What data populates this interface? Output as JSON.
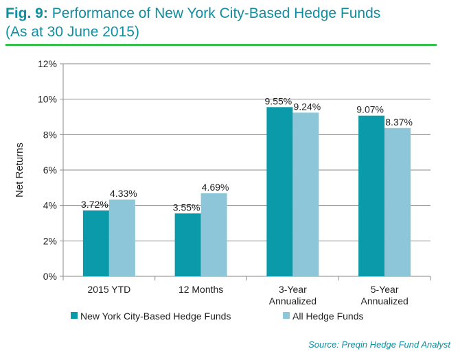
{
  "header": {
    "fig_label": "Fig. 9:",
    "title_line1": "Performance of New York City-Based Hedge Funds",
    "title_line2": "(As at 30 June 2015)"
  },
  "footer": {
    "source": "Source: Preqin Hedge Fund Analyst"
  },
  "colors": {
    "title": "#0e8ea0",
    "rule": "#33c24a",
    "nyc": "#0a9aaa",
    "all": "#8cc6d8"
  },
  "chart_data": {
    "type": "bar",
    "categories": [
      [
        "2015 YTD"
      ],
      [
        "12 Months"
      ],
      [
        "3-Year",
        "Annualized"
      ],
      [
        "5-Year",
        "Annualized"
      ]
    ],
    "series": [
      {
        "name": "New York City-Based Hedge Funds",
        "values": [
          3.72,
          3.55,
          9.55,
          9.07
        ],
        "labels": [
          "3.72%",
          "3.55%",
          "9.55%",
          "9.07%"
        ],
        "color": "#0a9aaa"
      },
      {
        "name": "All Hedge Funds",
        "values": [
          4.33,
          4.69,
          9.24,
          8.37
        ],
        "labels": [
          "4.33%",
          "4.69%",
          "9.24%",
          "8.37%"
        ],
        "color": "#8cc6d8"
      }
    ],
    "ylabel": "Net Returns",
    "ylim": [
      0,
      12
    ],
    "yticks": [
      "0%",
      "2%",
      "4%",
      "6%",
      "8%",
      "10%",
      "12%"
    ],
    "grid": true,
    "legend": "bottom"
  }
}
